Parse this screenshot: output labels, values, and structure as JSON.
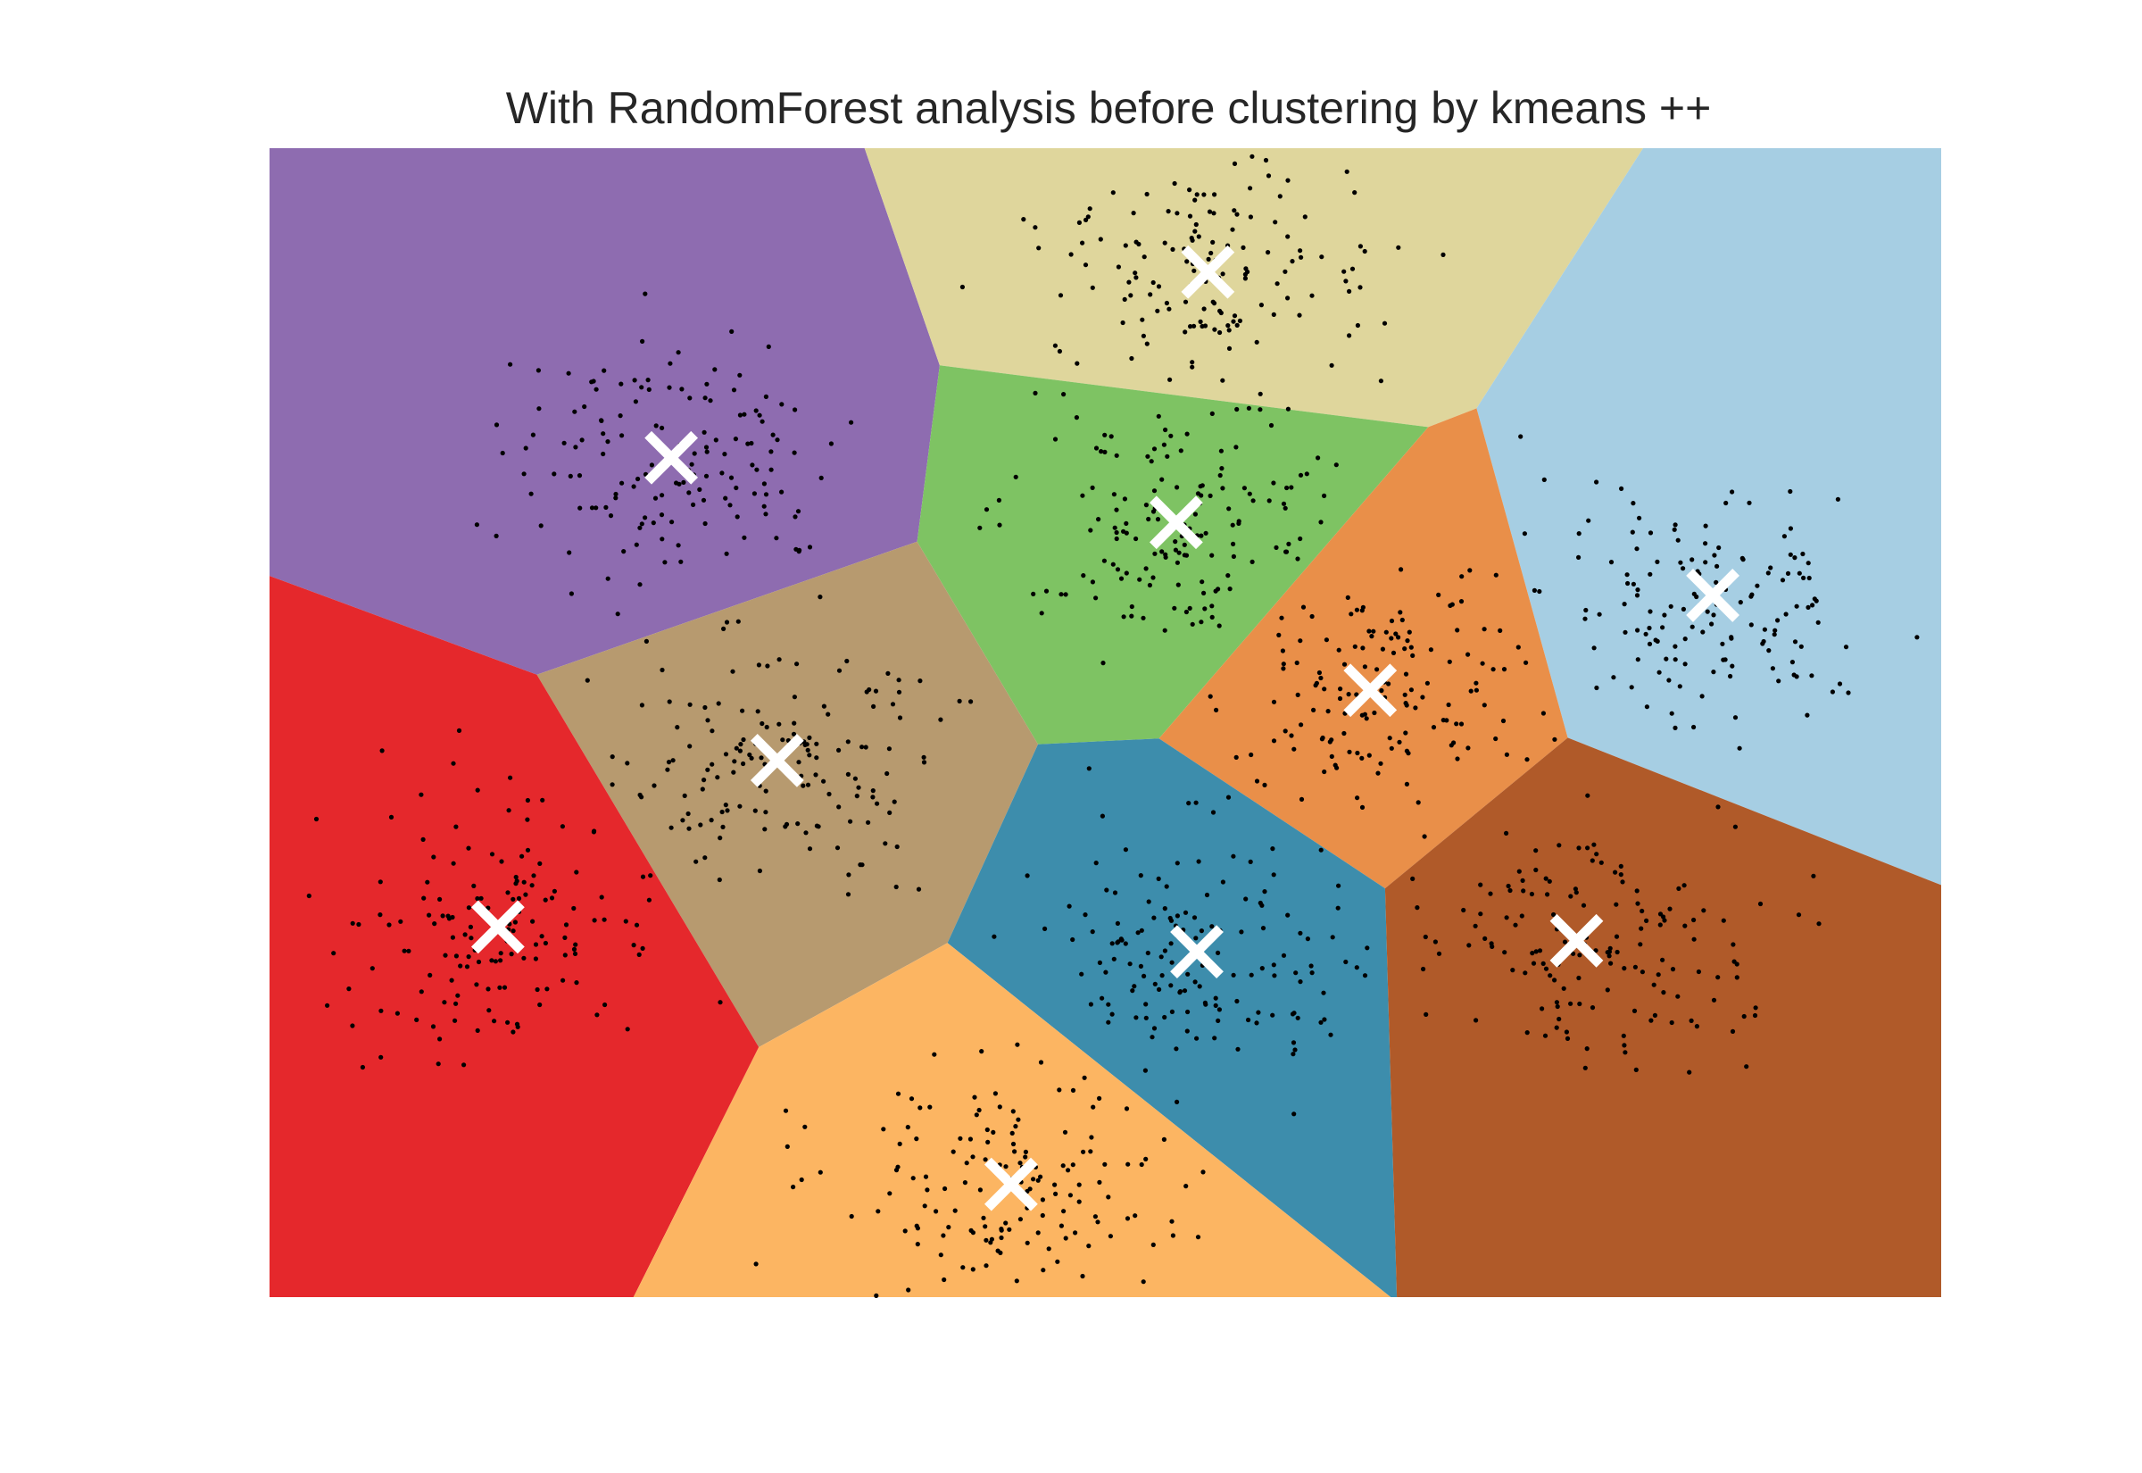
{
  "chart_data": {
    "type": "scatter",
    "title": "With RandomForest analysis before clustering by kmeans ++",
    "xlabel": "",
    "ylabel": "",
    "xlim": [
      0,
      12.15
    ],
    "ylim": [
      0,
      8.35
    ],
    "grid": false,
    "legend": "none",
    "regions": [
      {
        "color": "#8e6cb0",
        "centroid": [
          2.92,
          6.1
        ]
      },
      {
        "color": "#dfd69c",
        "centroid": [
          6.82,
          7.45
        ]
      },
      {
        "color": "#a6cee3",
        "centroid": [
          10.49,
          5.1
        ]
      },
      {
        "color": "#7ec363",
        "centroid": [
          6.59,
          5.63
        ]
      },
      {
        "color": "#e98f49",
        "centroid": [
          8.0,
          4.41
        ]
      },
      {
        "color": "#b79a6f",
        "centroid": [
          3.69,
          3.9
        ]
      },
      {
        "color": "#e5282c",
        "centroid": [
          1.66,
          2.69
        ]
      },
      {
        "color": "#3d8dac",
        "centroid": [
          6.74,
          2.51
        ]
      },
      {
        "color": "#fcb562",
        "centroid": [
          5.39,
          0.82
        ]
      },
      {
        "color": "#b05a29",
        "centroid": [
          9.5,
          2.59
        ]
      }
    ],
    "centroid_marker": {
      "shape": "x",
      "color": "#ffffff"
    },
    "point_color": "#000000",
    "points_per_cluster": 150
  }
}
